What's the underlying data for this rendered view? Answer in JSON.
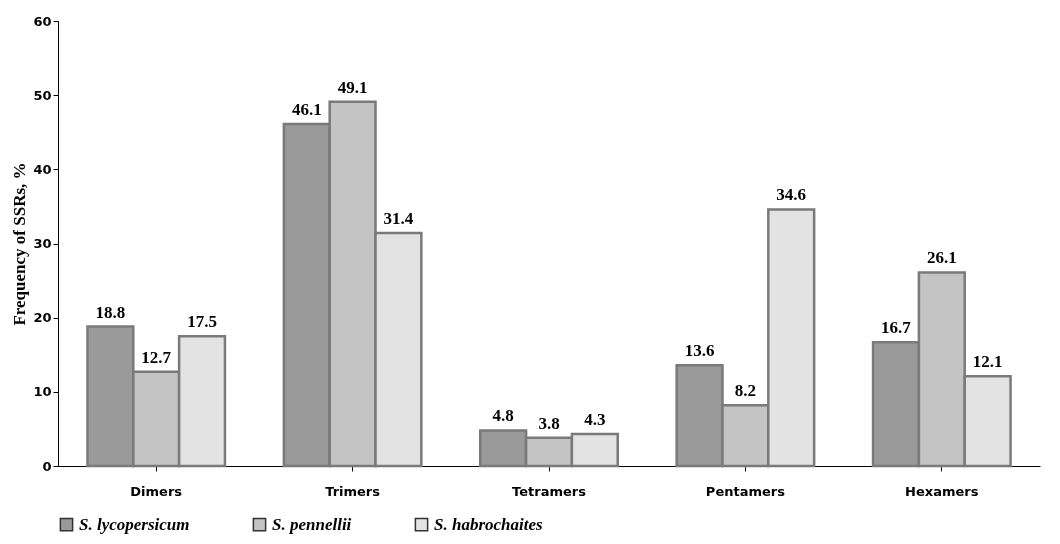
{
  "chart_data": {
    "type": "bar",
    "ylabel": "Frequency of SSRs, %",
    "categories": [
      "Dimers",
      "Trimers",
      "Tetramers",
      "Pentamers",
      "Hexamers"
    ],
    "series": [
      {
        "name": "S. lycopersicum",
        "color": "#9a9a9a",
        "values": [
          18.8,
          46.1,
          4.8,
          13.6,
          16.7
        ]
      },
      {
        "name": "S. pennellii",
        "color": "#c4c4c4",
        "values": [
          12.7,
          49.1,
          3.8,
          8.2,
          26.1
        ]
      },
      {
        "name": "S. habrochaites",
        "color": "#e3e3e3",
        "values": [
          17.5,
          31.4,
          4.3,
          34.6,
          12.1
        ]
      }
    ],
    "ylim": [
      0,
      60
    ],
    "yticks": [
      0,
      10,
      20,
      30,
      40,
      50,
      60
    ],
    "grid": false,
    "legend": "bottom",
    "data_labels": true
  }
}
